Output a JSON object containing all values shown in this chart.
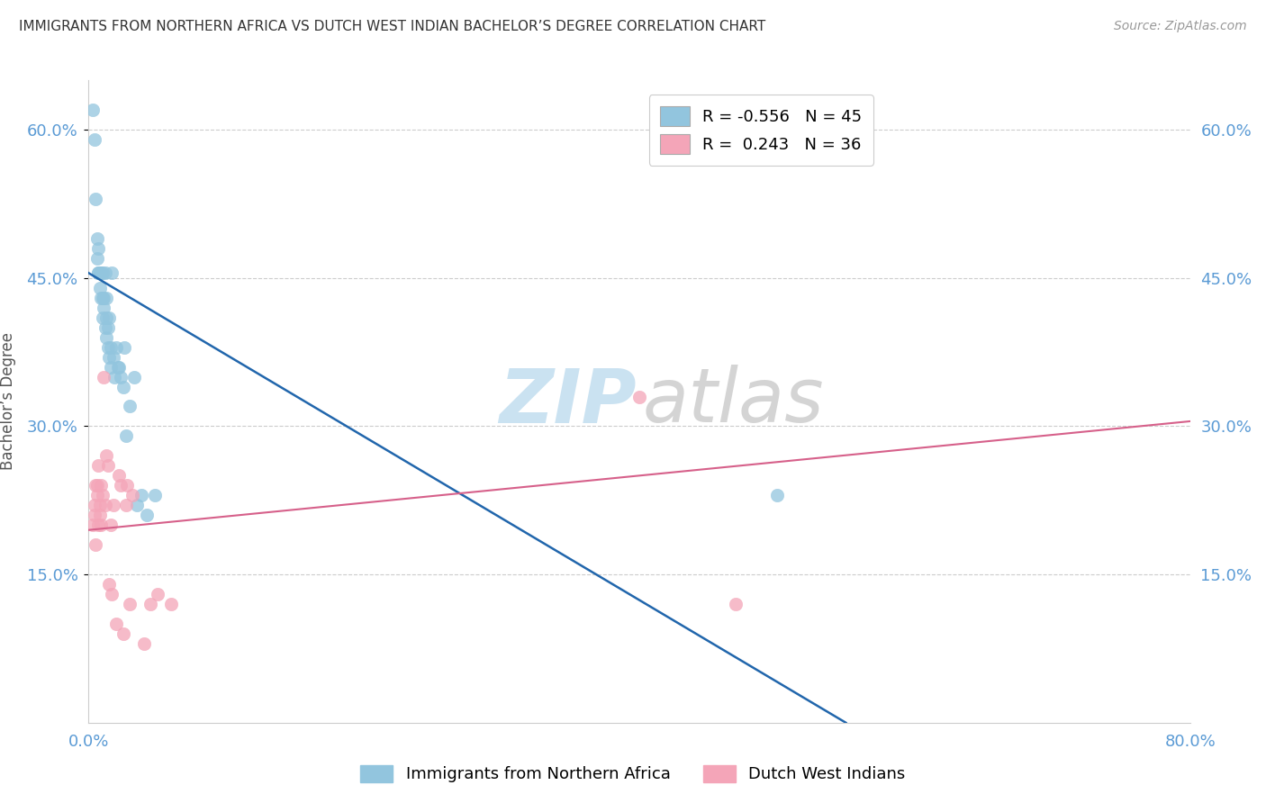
{
  "title": "IMMIGRANTS FROM NORTHERN AFRICA VS DUTCH WEST INDIAN BACHELOR’S DEGREE CORRELATION CHART",
  "source": "Source: ZipAtlas.com",
  "ylabel": "Bachelor’s Degree",
  "ytick_vals": [
    0.15,
    0.3,
    0.45,
    0.6
  ],
  "ytick_labels": [
    "15.0%",
    "30.0%",
    "45.0%",
    "60.0%"
  ],
  "xlim": [
    0.0,
    0.8
  ],
  "ylim": [
    0.0,
    0.65
  ],
  "blue_R": -0.556,
  "blue_N": 45,
  "pink_R": 0.243,
  "pink_N": 36,
  "blue_color": "#92c5de",
  "pink_color": "#f4a5b8",
  "blue_line_color": "#2166ac",
  "pink_line_color": "#d6608a",
  "legend_label_blue": "Immigrants from Northern Africa",
  "legend_label_pink": "Dutch West Indians",
  "blue_scatter_x": [
    0.003,
    0.004,
    0.005,
    0.006,
    0.006,
    0.007,
    0.007,
    0.007,
    0.008,
    0.008,
    0.009,
    0.009,
    0.01,
    0.01,
    0.01,
    0.011,
    0.011,
    0.012,
    0.012,
    0.013,
    0.013,
    0.013,
    0.014,
    0.014,
    0.015,
    0.015,
    0.016,
    0.016,
    0.017,
    0.018,
    0.019,
    0.02,
    0.021,
    0.022,
    0.023,
    0.025,
    0.026,
    0.027,
    0.03,
    0.033,
    0.035,
    0.038,
    0.042,
    0.048,
    0.5
  ],
  "blue_scatter_y": [
    0.62,
    0.59,
    0.53,
    0.49,
    0.47,
    0.48,
    0.455,
    0.455,
    0.44,
    0.455,
    0.43,
    0.455,
    0.41,
    0.43,
    0.455,
    0.42,
    0.43,
    0.4,
    0.455,
    0.39,
    0.41,
    0.43,
    0.4,
    0.38,
    0.37,
    0.41,
    0.38,
    0.36,
    0.455,
    0.37,
    0.35,
    0.38,
    0.36,
    0.36,
    0.35,
    0.34,
    0.38,
    0.29,
    0.32,
    0.35,
    0.22,
    0.23,
    0.21,
    0.23,
    0.23
  ],
  "pink_scatter_x": [
    0.003,
    0.004,
    0.004,
    0.005,
    0.005,
    0.006,
    0.006,
    0.007,
    0.007,
    0.008,
    0.008,
    0.009,
    0.009,
    0.01,
    0.011,
    0.012,
    0.013,
    0.014,
    0.015,
    0.016,
    0.017,
    0.018,
    0.02,
    0.022,
    0.023,
    0.025,
    0.027,
    0.028,
    0.03,
    0.032,
    0.04,
    0.045,
    0.05,
    0.06,
    0.4,
    0.47
  ],
  "pink_scatter_y": [
    0.2,
    0.21,
    0.22,
    0.24,
    0.18,
    0.24,
    0.23,
    0.2,
    0.26,
    0.21,
    0.22,
    0.2,
    0.24,
    0.23,
    0.35,
    0.22,
    0.27,
    0.26,
    0.14,
    0.2,
    0.13,
    0.22,
    0.1,
    0.25,
    0.24,
    0.09,
    0.22,
    0.24,
    0.12,
    0.23,
    0.08,
    0.12,
    0.13,
    0.12,
    0.33,
    0.12
  ],
  "blue_line_x0": 0.0,
  "blue_line_y0": 0.455,
  "blue_line_x1": 0.55,
  "blue_line_y1": 0.0,
  "pink_line_x0": 0.0,
  "pink_line_y0": 0.195,
  "pink_line_x1": 0.8,
  "pink_line_y1": 0.305,
  "background_color": "#ffffff",
  "grid_color": "#cccccc",
  "title_color": "#333333",
  "axis_label_color": "#5b9bd5",
  "ylabel_color": "#555555",
  "watermark_zip_color": "#c5dff0",
  "watermark_atlas_color": "#d0d0d0",
  "dot_size": 110
}
